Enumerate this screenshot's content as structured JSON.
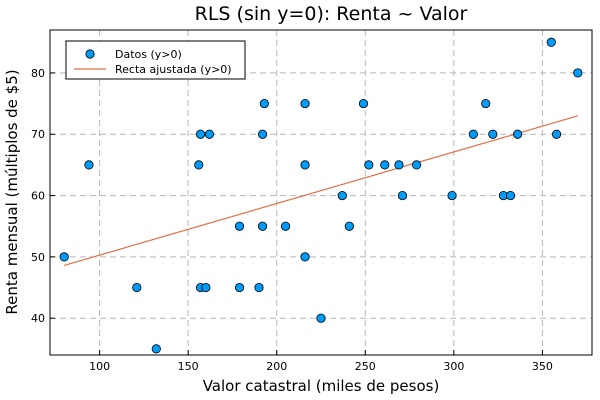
{
  "chart_data": {
    "type": "scatter",
    "title": "RLS (sin y=0): Renta ~ Valor",
    "xlabel": "Valor catastral (miles de pesos)",
    "ylabel": "Renta mensual (múltiplos de $5)",
    "xlim": [
      72,
      378
    ],
    "ylim": [
      34,
      87
    ],
    "xticks": [
      100,
      150,
      200,
      250,
      300,
      350
    ],
    "yticks": [
      40,
      50,
      60,
      70,
      80
    ],
    "grid": true,
    "legend_position": "top-left",
    "series": [
      {
        "name": "Datos (y>0)",
        "kind": "scatter",
        "color": "#009AF9",
        "x": [
          80,
          94,
          121,
          132,
          156,
          157,
          157,
          160,
          162,
          179,
          179,
          190,
          192,
          192,
          193,
          205,
          216,
          216,
          216,
          225,
          237,
          241,
          249,
          252,
          261,
          269,
          271,
          279,
          299,
          311,
          318,
          322,
          328,
          332,
          336,
          355,
          358,
          370
        ],
        "y": [
          50,
          65,
          45,
          35,
          65,
          70,
          45,
          45,
          70,
          55,
          45,
          45,
          70,
          55,
          75,
          55,
          75,
          65,
          50,
          40,
          60,
          55,
          75,
          65,
          65,
          65,
          60,
          65,
          60,
          70,
          75,
          70,
          60,
          60,
          70,
          85,
          70,
          80
        ]
      },
      {
        "name": "Recta ajustada (y>0)",
        "kind": "line",
        "color": "#E26F46",
        "x": [
          80,
          370
        ],
        "y": [
          48.6,
          73.0
        ]
      }
    ]
  }
}
